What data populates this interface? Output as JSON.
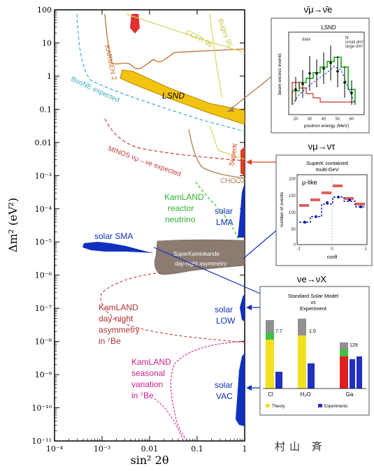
{
  "chart_data": {
    "type": "scatter",
    "xlabel": "sin² 2θ",
    "ylabel": "Δm² (eV²)",
    "xscale": "log",
    "yscale": "log",
    "xlim": [
      0.0001,
      1
    ],
    "ylim": [
      1e-11,
      100
    ],
    "xticks": [
      "10⁻⁴",
      "10⁻³",
      "0.01",
      "0.1",
      "1"
    ],
    "yticks": [
      "100",
      "10",
      "1",
      "0.1",
      "0.01",
      "10⁻³",
      "10⁻⁴",
      "10⁻⁵",
      "10⁻⁶",
      "10⁻⁷",
      "10⁻⁸",
      "10⁻⁹",
      "10⁻¹⁰",
      "10⁻¹¹"
    ],
    "regions": [
      {
        "label": "LSND",
        "color": "#f2c40f",
        "x_range": [
          0.002,
          1
        ],
        "dm2_range": [
          0.05,
          1.2
        ]
      },
      {
        "label": "solar SMA",
        "color": "#1030c0",
        "x_range": [
          0.0005,
          0.0012
        ],
        "dm2_range": [
          3e-06,
          1e-05
        ]
      },
      {
        "label": "solar LMA",
        "color": "#1030c0",
        "x_range": [
          0.7,
          1
        ],
        "dm2_range": [
          1e-05,
          0.0003
        ]
      },
      {
        "label": "solar LOW",
        "color": "#1030c0",
        "x_range": [
          0.85,
          1
        ],
        "dm2_range": [
          5e-08,
          2e-07
        ]
      },
      {
        "label": "solar VAC",
        "color": "#1030c0",
        "x_range": [
          0.7,
          1
        ],
        "dm2_range": [
          6e-11,
          3e-09
        ]
      },
      {
        "label": "SuperKamiokande day-night asymmetry",
        "color": "#8b7b70",
        "x_range": [
          0.005,
          1
        ],
        "dm2_range": [
          1.5e-06,
          1e-05
        ]
      }
    ],
    "curves": [
      {
        "label": "KARMEN 2",
        "color": "#c07030",
        "style": "solid"
      },
      {
        "label": "CCFR 96",
        "color": "#d8d860",
        "style": "solid"
      },
      {
        "label": "Bugey 95",
        "color": "#d8d860",
        "style": "solid"
      },
      {
        "label": "BooNE expected",
        "color": "#40b0c0",
        "style": "dashed"
      },
      {
        "label": "MINOS νμ→νe expected",
        "color": "#c04040",
        "style": "dashed"
      },
      {
        "label": "CHOOZ",
        "color": "#b08050",
        "style": "solid"
      },
      {
        "label": "Palo Verde",
        "color": "#d8d860",
        "style": "solid"
      },
      {
        "label": "KamLAND reactor neutrino",
        "color": "#30c030",
        "style": "dashed"
      },
      {
        "label": "KamLAND day-night asymmetry in ⁷Be",
        "color": "#c04040",
        "style": "dashed"
      },
      {
        "label": "KamLAND seasonal variation in ⁷Be",
        "color": "#d02090",
        "style": "dashed"
      },
      {
        "label": "Super-K",
        "color": "#e04020",
        "style": "solid"
      }
    ],
    "labels": {
      "karmen": "KARMEN 2",
      "ccfr": "CCFR 96",
      "bugey": "Bugey 95",
      "boone": "BooNE expected",
      "lsnd": "LSND",
      "minos": "MINOS νμ→νe expected",
      "chooz": "CHOOZ",
      "superk": "SuperK",
      "kamland_reactor": [
        "KamLAND",
        "reactor",
        "neutrino"
      ],
      "solar_lma": [
        "solar",
        "LMA"
      ],
      "solar_sma": "solar SMA",
      "sk_daynight": [
        "SuperKamiokande",
        "day-night asymmetry"
      ],
      "kamland_dn": [
        "KamLAND",
        "day-night",
        "asymmetry",
        "in ⁷Be"
      ],
      "solar_low": [
        "solar",
        "LOW"
      ],
      "kamland_seasonal": [
        "KamLAND",
        "seasonal",
        "variation",
        "in ⁷Be"
      ],
      "solar_vac": [
        "solar",
        "VAC"
      ]
    }
  },
  "insets": {
    "lsnd": {
      "header": "ν̄μ→ν̄e",
      "title": "LSND",
      "legend": [
        "data",
        "fit",
        "small dm²",
        "large dm²"
      ],
      "xlabel": "positron energy (MeV)",
      "ylabel": "beam excess events",
      "xticks": [
        "20",
        "30",
        "40",
        "50",
        "60"
      ]
    },
    "superk": {
      "header": "νμ→ντ",
      "title": [
        "SuperK contained",
        "multi-GeV"
      ],
      "sublabel": "μ-like",
      "xlabel": "cosθ",
      "ylabel": "number of events",
      "xticks": [
        "-1",
        "0",
        "1"
      ],
      "yticks": [
        "200",
        "150",
        "100",
        "50",
        "0"
      ]
    },
    "solar": {
      "header": "νe→νX",
      "title": [
        "Standard Solar Model",
        "vs",
        "Experiment"
      ],
      "experiments": [
        "Cl",
        "H₂O",
        "Ga"
      ],
      "values": [
        "7.7",
        "1.0",
        "129"
      ],
      "legend": [
        "Theory",
        "Experiments"
      ]
    }
  },
  "signature": "村山 斉"
}
